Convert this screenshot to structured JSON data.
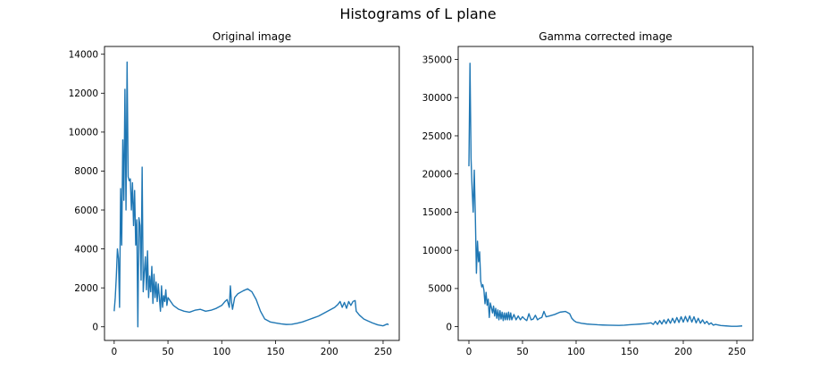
{
  "suptitle": "Histograms of L plane",
  "colors": {
    "line": "#1f77b4",
    "axes": "#000000",
    "background": "#ffffff"
  },
  "chart_data": [
    {
      "type": "line",
      "title": "Original image",
      "xlabel": "",
      "ylabel": "",
      "xlim": [
        -9,
        265
      ],
      "ylim": [
        -700,
        14400
      ],
      "xticks": [
        0,
        50,
        100,
        150,
        200,
        250
      ],
      "yticks": [
        0,
        2000,
        4000,
        6000,
        8000,
        10000,
        12000,
        14000
      ],
      "grid": false,
      "series": [
        {
          "points": [
            [
              0,
              800
            ],
            [
              1,
              1500
            ],
            [
              2,
              2600
            ],
            [
              3,
              4000
            ],
            [
              4,
              3500
            ],
            [
              5,
              1000
            ],
            [
              6,
              7100
            ],
            [
              7,
              4200
            ],
            [
              8,
              9600
            ],
            [
              9,
              6500
            ],
            [
              10,
              12200
            ],
            [
              11,
              6000
            ],
            [
              12,
              13600
            ],
            [
              13,
              7700
            ],
            [
              14,
              7500
            ],
            [
              15,
              7600
            ],
            [
              16,
              6000
            ],
            [
              17,
              7400
            ],
            [
              18,
              5200
            ],
            [
              19,
              7000
            ],
            [
              20,
              4200
            ],
            [
              21,
              5500
            ],
            [
              22,
              0
            ],
            [
              23,
              5600
            ],
            [
              24,
              5200
            ],
            [
              25,
              2400
            ],
            [
              26,
              8200
            ],
            [
              27,
              1800
            ],
            [
              28,
              2800
            ],
            [
              29,
              3600
            ],
            [
              30,
              1900
            ],
            [
              31,
              3900
            ],
            [
              32,
              1500
            ],
            [
              33,
              2600
            ],
            [
              34,
              1800
            ],
            [
              35,
              3100
            ],
            [
              36,
              1200
            ],
            [
              37,
              2700
            ],
            [
              38,
              1500
            ],
            [
              39,
              2300
            ],
            [
              40,
              1300
            ],
            [
              41,
              2200
            ],
            [
              42,
              1500
            ],
            [
              43,
              800
            ],
            [
              44,
              2100
            ],
            [
              45,
              1000
            ],
            [
              46,
              1600
            ],
            [
              47,
              1300
            ],
            [
              48,
              1900
            ],
            [
              49,
              1100
            ],
            [
              50,
              1500
            ],
            [
              55,
              1100
            ],
            [
              60,
              900
            ],
            [
              65,
              800
            ],
            [
              70,
              750
            ],
            [
              75,
              850
            ],
            [
              80,
              900
            ],
            [
              85,
              800
            ],
            [
              90,
              850
            ],
            [
              95,
              950
            ],
            [
              100,
              1100
            ],
            [
              103,
              1300
            ],
            [
              105,
              1400
            ],
            [
              106,
              1200
            ],
            [
              107,
              1000
            ],
            [
              108,
              2100
            ],
            [
              109,
              1300
            ],
            [
              110,
              900
            ],
            [
              112,
              1500
            ],
            [
              115,
              1700
            ],
            [
              120,
              1850
            ],
            [
              124,
              1950
            ],
            [
              128,
              1800
            ],
            [
              132,
              1400
            ],
            [
              136,
              800
            ],
            [
              140,
              400
            ],
            [
              145,
              250
            ],
            [
              150,
              200
            ],
            [
              155,
              150
            ],
            [
              160,
              120
            ],
            [
              165,
              130
            ],
            [
              170,
              180
            ],
            [
              175,
              250
            ],
            [
              180,
              350
            ],
            [
              185,
              450
            ],
            [
              190,
              550
            ],
            [
              195,
              700
            ],
            [
              200,
              850
            ],
            [
              205,
              1000
            ],
            [
              208,
              1150
            ],
            [
              210,
              1300
            ],
            [
              212,
              1000
            ],
            [
              214,
              1250
            ],
            [
              216,
              950
            ],
            [
              218,
              1300
            ],
            [
              220,
              1100
            ],
            [
              222,
              1300
            ],
            [
              224,
              1350
            ],
            [
              225,
              800
            ],
            [
              228,
              600
            ],
            [
              232,
              400
            ],
            [
              236,
              300
            ],
            [
              240,
              200
            ],
            [
              245,
              100
            ],
            [
              250,
              50
            ],
            [
              252,
              100
            ],
            [
              254,
              150
            ],
            [
              255,
              100
            ]
          ]
        }
      ]
    },
    {
      "type": "line",
      "title": "Gamma corrected image",
      "xlabel": "",
      "ylabel": "",
      "xlim": [
        -10,
        265
      ],
      "ylim": [
        -1800,
        36700
      ],
      "xticks": [
        0,
        50,
        100,
        150,
        200,
        250
      ],
      "yticks": [
        0,
        5000,
        10000,
        15000,
        20000,
        25000,
        30000,
        35000
      ],
      "grid": false,
      "series": [
        {
          "points": [
            [
              0,
              21000
            ],
            [
              1,
              34500
            ],
            [
              2,
              22000
            ],
            [
              3,
              18000
            ],
            [
              4,
              15000
            ],
            [
              5,
              20500
            ],
            [
              6,
              14500
            ],
            [
              7,
              7000
            ],
            [
              8,
              11200
            ],
            [
              9,
              8500
            ],
            [
              10,
              9800
            ],
            [
              11,
              6000
            ],
            [
              12,
              5200
            ],
            [
              13,
              5500
            ],
            [
              14,
              4800
            ],
            [
              15,
              3000
            ],
            [
              16,
              4500
            ],
            [
              17,
              2800
            ],
            [
              18,
              3600
            ],
            [
              19,
              1200
            ],
            [
              20,
              3100
            ],
            [
              21,
              2500
            ],
            [
              22,
              1800
            ],
            [
              23,
              2700
            ],
            [
              24,
              1400
            ],
            [
              25,
              2400
            ],
            [
              26,
              1100
            ],
            [
              27,
              2200
            ],
            [
              28,
              900
            ],
            [
              29,
              2100
            ],
            [
              30,
              1000
            ],
            [
              31,
              1900
            ],
            [
              32,
              800
            ],
            [
              33,
              1800
            ],
            [
              34,
              900
            ],
            [
              35,
              1800
            ],
            [
              36,
              900
            ],
            [
              37,
              1900
            ],
            [
              38,
              900
            ],
            [
              39,
              1800
            ],
            [
              40,
              900
            ],
            [
              42,
              1600
            ],
            [
              44,
              900
            ],
            [
              46,
              1400
            ],
            [
              48,
              900
            ],
            [
              50,
              1300
            ],
            [
              52,
              1000
            ],
            [
              54,
              800
            ],
            [
              56,
              1700
            ],
            [
              58,
              900
            ],
            [
              60,
              1000
            ],
            [
              62,
              1500
            ],
            [
              64,
              900
            ],
            [
              66,
              1100
            ],
            [
              68,
              1200
            ],
            [
              70,
              2000
            ],
            [
              72,
              1300
            ],
            [
              75,
              1400
            ],
            [
              80,
              1600
            ],
            [
              85,
              1900
            ],
            [
              90,
              2000
            ],
            [
              94,
              1700
            ],
            [
              96,
              1100
            ],
            [
              98,
              800
            ],
            [
              100,
              600
            ],
            [
              105,
              450
            ],
            [
              110,
              350
            ],
            [
              115,
              300
            ],
            [
              120,
              250
            ],
            [
              125,
              220
            ],
            [
              130,
              200
            ],
            [
              135,
              180
            ],
            [
              140,
              170
            ],
            [
              145,
              200
            ],
            [
              150,
              250
            ],
            [
              155,
              300
            ],
            [
              160,
              350
            ],
            [
              165,
              400
            ],
            [
              170,
              500
            ],
            [
              172,
              300
            ],
            [
              174,
              700
            ],
            [
              176,
              300
            ],
            [
              178,
              800
            ],
            [
              180,
              350
            ],
            [
              182,
              900
            ],
            [
              184,
              400
            ],
            [
              186,
              1000
            ],
            [
              188,
              450
            ],
            [
              190,
              1100
            ],
            [
              192,
              500
            ],
            [
              194,
              1200
            ],
            [
              196,
              550
            ],
            [
              198,
              1300
            ],
            [
              200,
              600
            ],
            [
              202,
              1350
            ],
            [
              204,
              650
            ],
            [
              206,
              1400
            ],
            [
              208,
              600
            ],
            [
              210,
              1300
            ],
            [
              212,
              500
            ],
            [
              214,
              1100
            ],
            [
              216,
              450
            ],
            [
              218,
              900
            ],
            [
              220,
              400
            ],
            [
              222,
              700
            ],
            [
              224,
              300
            ],
            [
              226,
              500
            ],
            [
              228,
              200
            ],
            [
              230,
              300
            ],
            [
              235,
              150
            ],
            [
              240,
              100
            ],
            [
              245,
              50
            ],
            [
              250,
              50
            ],
            [
              255,
              100
            ]
          ]
        }
      ]
    }
  ]
}
